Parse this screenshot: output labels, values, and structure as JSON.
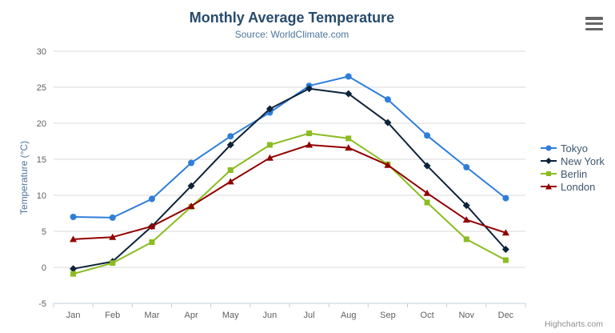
{
  "title": "Monthly Average Temperature",
  "subtitle": "Source: WorldClimate.com",
  "credits_label": "Highcharts.com",
  "export_menu_icon": "hamburger-menu-icon",
  "colors": {
    "title_text": "#274b6d",
    "subtitle_text": "#4d759e",
    "axis_title_text": "#4d759e",
    "tick_label_text": "#606060",
    "axis_line": "#c0d0e0",
    "gridline": "#d8d8d8",
    "legend_text": "#3e576f",
    "credits_text": "#8f8f8f",
    "menu_icon": "#666666"
  },
  "chart_data": {
    "type": "line",
    "title": "Monthly Average Temperature",
    "subtitle": "Source: WorldClimate.com",
    "xlabel": "",
    "ylabel": "Temperature (°C)",
    "ylim": [
      -5,
      30
    ],
    "ytick_step": 5,
    "ytick_labels": [
      "-5",
      "0",
      "5",
      "10",
      "15",
      "20",
      "25",
      "30"
    ],
    "grid": true,
    "legend_position": "right",
    "categories": [
      "Jan",
      "Feb",
      "Mar",
      "Apr",
      "May",
      "Jun",
      "Jul",
      "Aug",
      "Sep",
      "Oct",
      "Nov",
      "Dec"
    ],
    "series": [
      {
        "name": "Tokyo",
        "color": "#2f7ed8",
        "marker": "circle",
        "values": [
          7.0,
          6.9,
          9.5,
          14.5,
          18.2,
          21.5,
          25.2,
          26.5,
          23.3,
          18.3,
          13.9,
          9.6
        ]
      },
      {
        "name": "New York",
        "color": "#0d233a",
        "marker": "diamond",
        "values": [
          -0.2,
          0.8,
          5.7,
          11.3,
          17.0,
          22.0,
          24.8,
          24.1,
          20.1,
          14.1,
          8.6,
          2.5
        ]
      },
      {
        "name": "Berlin",
        "color": "#8bbc21",
        "marker": "square",
        "values": [
          -0.9,
          0.6,
          3.5,
          8.4,
          13.5,
          17.0,
          18.6,
          17.9,
          14.3,
          9.0,
          3.9,
          1.0
        ]
      },
      {
        "name": "London",
        "color": "#910000",
        "marker": "triangle",
        "values": [
          3.9,
          4.2,
          5.7,
          8.5,
          11.9,
          15.2,
          17.0,
          16.6,
          14.2,
          10.3,
          6.6,
          4.8
        ]
      }
    ]
  }
}
